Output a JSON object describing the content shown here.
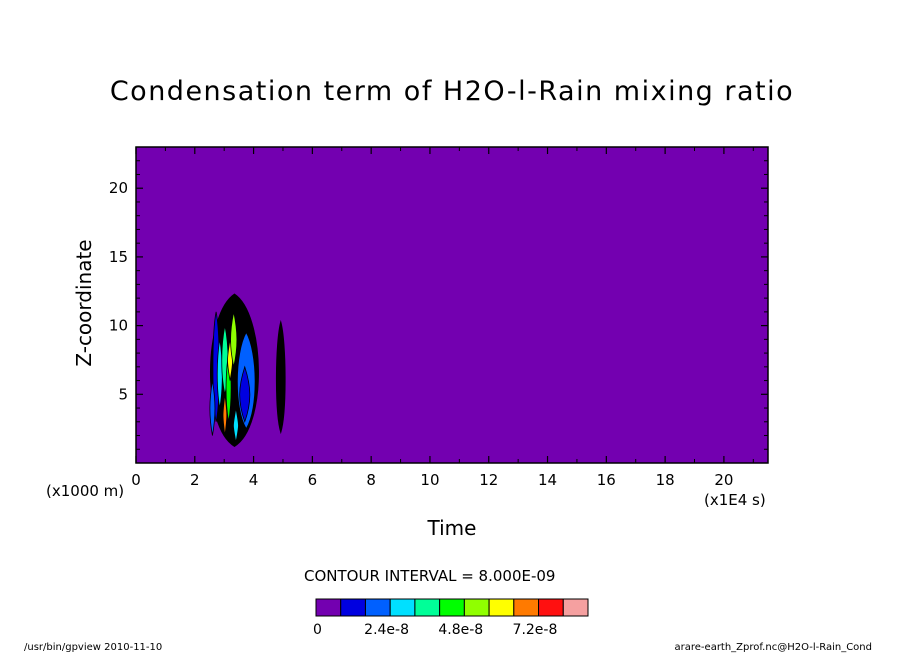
{
  "chart_data": {
    "type": "heatmap",
    "title": "Condensation term of H2O-l-Rain mixing ratio",
    "xlabel": "Time",
    "ylabel": "Z-coordinate",
    "x_unit_label": "(x1E4 s)",
    "y_unit_label": "(x1000 m)",
    "xlim": [
      0,
      21.5
    ],
    "ylim": [
      0,
      23
    ],
    "x_ticks": [
      "0",
      "2",
      "4",
      "6",
      "8",
      "10",
      "12",
      "14",
      "16",
      "18",
      "20"
    ],
    "y_ticks": [
      "5",
      "10",
      "15",
      "20"
    ],
    "background_level_color": "#7300b0",
    "contour_interval_text": "CONTOUR INTERVAL = 8.000E-09",
    "colorbar": {
      "colors": [
        "#7300b0",
        "#0000e0",
        "#0060ff",
        "#00e0ff",
        "#00ff98",
        "#00ff00",
        "#90ff00",
        "#ffff00",
        "#ff7a00",
        "#ff1010",
        "#f5a0a0"
      ],
      "labels": [
        {
          "text": "0",
          "boundary": 0
        },
        {
          "text": "2.4e-8",
          "boundary": 3
        },
        {
          "text": "4.8e-8",
          "boundary": 6
        },
        {
          "text": "7.2e-8",
          "boundary": 9
        }
      ]
    },
    "regions": [
      {
        "name": "main-cell-outer",
        "x_range": [
          2.4,
          4.3
        ],
        "z_range": [
          1.2,
          12.3
        ],
        "level_color": "#000000"
      },
      {
        "name": "main-cell-blue",
        "x_range": [
          3.4,
          4.1
        ],
        "z_range": [
          2.5,
          9.5
        ],
        "level_color": "#0060ff"
      },
      {
        "name": "secondary-cell",
        "x_range": [
          4.75,
          5.1
        ],
        "z_range": [
          2.2,
          10.3
        ],
        "level_color": "#000000"
      }
    ]
  },
  "footer": {
    "left": "/usr/bin/gpview   2010-11-10",
    "right": "arare-earth_Zprof.nc@H2O-l-Rain_Cond"
  }
}
